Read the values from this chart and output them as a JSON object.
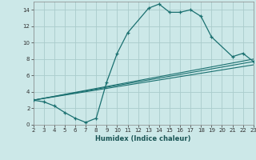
{
  "xlabel": "Humidex (Indice chaleur)",
  "bg_color": "#cce8e8",
  "grid_color": "#aacccc",
  "line_color": "#1a7070",
  "xlim": [
    2,
    23
  ],
  "ylim": [
    0,
    15
  ],
  "xticks": [
    2,
    3,
    4,
    5,
    6,
    7,
    8,
    9,
    10,
    11,
    12,
    13,
    14,
    15,
    16,
    17,
    18,
    19,
    20,
    21,
    22,
    23
  ],
  "yticks": [
    0,
    2,
    4,
    6,
    8,
    10,
    12,
    14
  ],
  "line1_x": [
    2,
    3,
    4,
    5,
    6,
    7,
    8,
    9,
    10,
    11,
    13,
    14,
    15,
    16,
    17,
    18,
    19,
    21,
    22,
    23
  ],
  "line1_y": [
    3.0,
    2.8,
    2.3,
    1.5,
    0.8,
    0.3,
    0.8,
    5.2,
    8.7,
    11.2,
    14.2,
    14.7,
    13.7,
    13.7,
    14.0,
    13.2,
    10.7,
    8.3,
    8.7,
    7.7
  ],
  "line2_x": [
    2,
    23
  ],
  "line2_y": [
    3.0,
    8.0
  ],
  "line3_x": [
    2,
    23
  ],
  "line3_y": [
    3.0,
    7.3
  ],
  "line4_x": [
    2,
    23
  ],
  "line4_y": [
    3.0,
    7.7
  ]
}
